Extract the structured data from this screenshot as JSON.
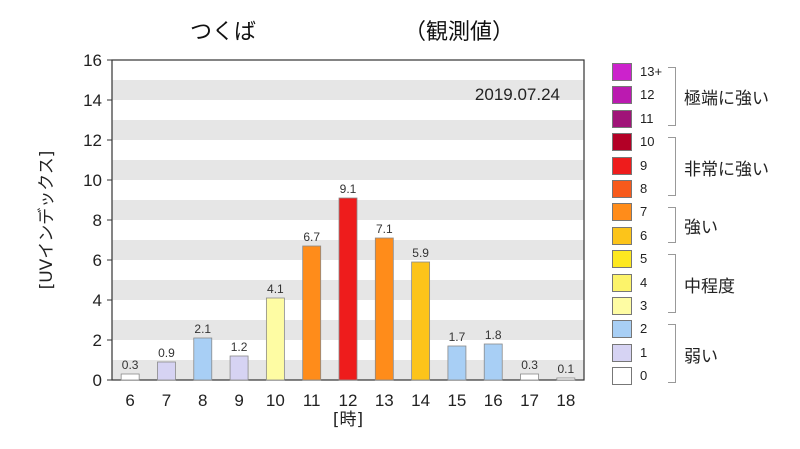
{
  "header": {
    "location": "つくば",
    "type": "（観測値）"
  },
  "chart_data": {
    "type": "bar",
    "date_label": "2019.07.24",
    "ylabel": "[UVインデックス]",
    "xlabel": "[時]",
    "ylim": [
      0,
      16
    ],
    "yticks": [
      "0",
      "2",
      "4",
      "6",
      "8",
      "10",
      "12",
      "14",
      "16"
    ],
    "grid": "alternating horizontal bands",
    "categories": [
      "6",
      "7",
      "8",
      "9",
      "10",
      "11",
      "12",
      "13",
      "14",
      "15",
      "16",
      "17",
      "18"
    ],
    "values": [
      0.3,
      0.9,
      2.1,
      1.2,
      4.1,
      6.7,
      9.1,
      7.1,
      5.9,
      1.7,
      1.8,
      0.3,
      0.1
    ],
    "value_labels": [
      "0.3",
      "0.9",
      "2.1",
      "1.2",
      "4.1",
      "6.7",
      "9.1",
      "7.1",
      "5.9",
      "1.7",
      "1.8",
      "0.3",
      "0.1"
    ],
    "bar_colors": [
      "#ffffff",
      "#d6d3f3",
      "#a8cff5",
      "#d6d3f3",
      "#fefca3",
      "#ff8c1a",
      "#ee1c1c",
      "#ff8c1a",
      "#fcc41a",
      "#a8cff5",
      "#a8cff5",
      "#ffffff",
      "#ffffff"
    ]
  },
  "legend": {
    "levels": [
      {
        "label": "13+",
        "color": "#cc22cc"
      },
      {
        "label": "12",
        "color": "#bb1ab0"
      },
      {
        "label": "11",
        "color": "#a01478"
      },
      {
        "label": "10",
        "color": "#b30026"
      },
      {
        "label": "9",
        "color": "#ee1c1c"
      },
      {
        "label": "8",
        "color": "#f75a1c"
      },
      {
        "label": "7",
        "color": "#ff8c1a"
      },
      {
        "label": "6",
        "color": "#fcc41a"
      },
      {
        "label": "5",
        "color": "#fde820"
      },
      {
        "label": "4",
        "color": "#fcf36a"
      },
      {
        "label": "3",
        "color": "#fefca3"
      },
      {
        "label": "2",
        "color": "#a8cff5"
      },
      {
        "label": "1",
        "color": "#d6d3f3"
      },
      {
        "label": "0",
        "color": "#ffffff"
      }
    ],
    "categories": [
      {
        "label": "極端に強い",
        "from": "11",
        "to": "13+"
      },
      {
        "label": "非常に強い",
        "from": "8",
        "to": "10"
      },
      {
        "label": "強い",
        "from": "6",
        "to": "7"
      },
      {
        "label": "中程度",
        "from": "3",
        "to": "5"
      },
      {
        "label": "弱い",
        "from": "0",
        "to": "2"
      }
    ]
  }
}
